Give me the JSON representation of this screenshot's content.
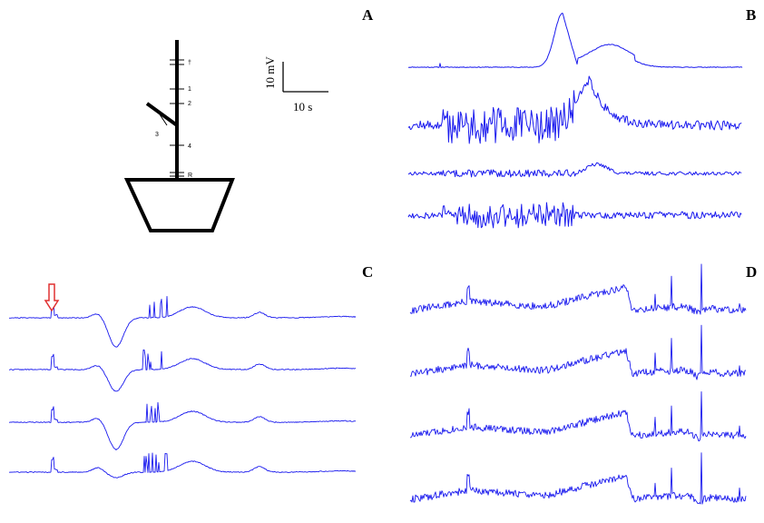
{
  "panels": {
    "a": "A",
    "b": "B",
    "c": "C",
    "d": "D"
  },
  "scale_bar": {
    "voltage": "10 mV",
    "time": "10 s"
  },
  "plant_sites": {
    "apex": "†",
    "s1": "1",
    "s2": "2",
    "s3": "3",
    "s4": "4",
    "root": "R"
  },
  "colors": {
    "trace": "#1a1aee",
    "arrow": "#e03030",
    "drawing": "#000000"
  },
  "icons": {
    "stimulus_marker": "down-arrow-icon"
  }
}
